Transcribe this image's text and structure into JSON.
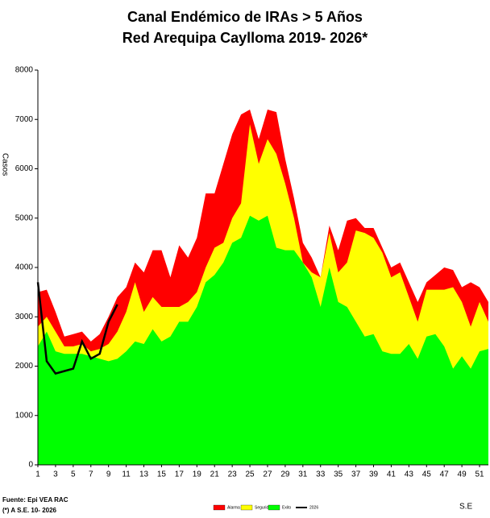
{
  "chart_data": {
    "type": "area",
    "title": "Canal Endémico de IRAs > 5 Años",
    "subtitle": "Red Arequipa Caylloma 2019- 2026*",
    "y_label": "Casos",
    "x_label": "S.E",
    "source": "Fuente: Epi VEA RAC",
    "note": "(*) A S.E. 10- 2026",
    "x": [
      1,
      2,
      3,
      4,
      5,
      6,
      7,
      8,
      9,
      10,
      11,
      12,
      13,
      14,
      15,
      16,
      17,
      18,
      19,
      20,
      21,
      22,
      23,
      24,
      25,
      26,
      27,
      28,
      29,
      30,
      31,
      32,
      33,
      34,
      35,
      36,
      37,
      38,
      39,
      40,
      41,
      42,
      43,
      44,
      45,
      46,
      47,
      48,
      49,
      50,
      51,
      52
    ],
    "xlim": [
      1,
      52
    ],
    "xticks": [
      1,
      3,
      5,
      7,
      9,
      11,
      13,
      15,
      17,
      19,
      21,
      23,
      25,
      27,
      29,
      31,
      33,
      35,
      37,
      39,
      41,
      43,
      45,
      47,
      49,
      51
    ],
    "ylim": [
      0,
      8000
    ],
    "yticks": [
      0,
      1000,
      2000,
      3000,
      4000,
      5000,
      6000,
      7000,
      8000
    ],
    "series": [
      {
        "name": "Alarma",
        "color": "#ff0000",
        "values": [
          3500,
          3550,
          3100,
          2600,
          2650,
          2700,
          2500,
          2650,
          3000,
          3400,
          3600,
          4100,
          3900,
          4350,
          4350,
          3800,
          4450,
          4200,
          4600,
          5500,
          5500,
          6100,
          6700,
          7100,
          7200,
          6600,
          7200,
          7150,
          6200,
          5400,
          4500,
          4200,
          3800,
          4850,
          4350,
          4950,
          5000,
          4800,
          4800,
          4400,
          4000,
          4100,
          3700,
          3300,
          3700,
          3850,
          4000,
          3950,
          3600,
          3700,
          3600,
          3300
        ]
      },
      {
        "name": "Seguridad",
        "color": "#ffff00",
        "values": [
          2800,
          3000,
          2700,
          2400,
          2400,
          2450,
          2300,
          2350,
          2450,
          2700,
          3100,
          3700,
          3100,
          3400,
          3200,
          3200,
          3200,
          3300,
          3500,
          4000,
          4400,
          4500,
          5000,
          5300,
          6900,
          6100,
          6600,
          6300,
          5700,
          5000,
          4100,
          3900,
          3800,
          4700,
          3900,
          4100,
          4750,
          4700,
          4600,
          4300,
          3800,
          3900,
          3400,
          2900,
          3550,
          3550,
          3550,
          3600,
          3300,
          2800,
          3300,
          2900
        ]
      },
      {
        "name": "Exito",
        "color": "#00ff00",
        "values": [
          2400,
          2700,
          2300,
          2250,
          2250,
          2250,
          2200,
          2150,
          2100,
          2150,
          2300,
          2500,
          2450,
          2750,
          2500,
          2600,
          2900,
          2900,
          3200,
          3700,
          3850,
          4100,
          4500,
          4600,
          5050,
          4950,
          5050,
          4400,
          4350,
          4350,
          4100,
          3800,
          3200,
          4000,
          3300,
          3200,
          2900,
          2600,
          2650,
          2300,
          2250,
          2250,
          2450,
          2150,
          2600,
          2650,
          2400,
          1950,
          2200,
          1950,
          2300,
          2350
        ]
      },
      {
        "name": "2026",
        "color": "#000000",
        "line": true,
        "values": [
          3700,
          2100,
          1850,
          1900,
          1950,
          2500,
          2150,
          2250,
          2900,
          3250,
          null,
          null,
          null,
          null,
          null,
          null,
          null,
          null,
          null,
          null,
          null,
          null,
          null,
          null,
          null,
          null,
          null,
          null,
          null,
          null,
          null,
          null,
          null,
          null,
          null,
          null,
          null,
          null,
          null,
          null,
          null,
          null,
          null,
          null,
          null,
          null,
          null,
          null,
          null,
          null,
          null,
          null
        ]
      }
    ]
  }
}
